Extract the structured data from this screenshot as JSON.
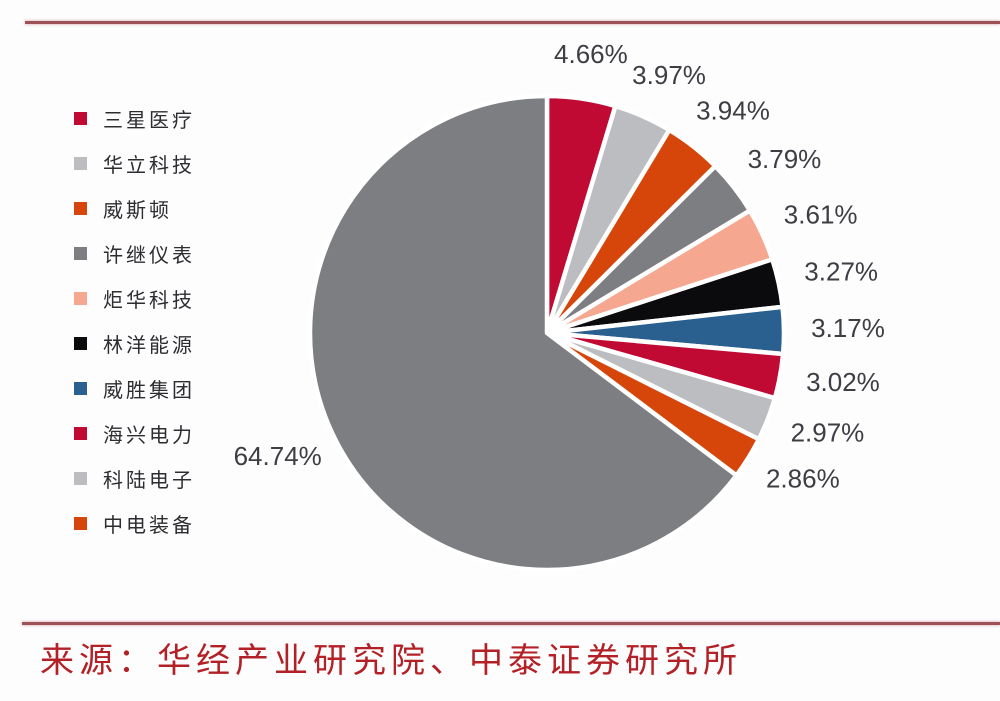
{
  "chart_data": {
    "type": "pie",
    "title": "",
    "legend_position": "left",
    "start_angle_deg": 0,
    "direction": "clockwise",
    "total": 100,
    "slices": [
      {
        "label": "三星医疗",
        "value": 4.66,
        "display": "4.66%",
        "color": "#c00a33",
        "in_legend": true
      },
      {
        "label": "华立科技",
        "value": 3.97,
        "display": "3.97%",
        "color": "#bcbdc0",
        "in_legend": true
      },
      {
        "label": "威斯顿",
        "value": 3.94,
        "display": "3.94%",
        "color": "#d6450a",
        "in_legend": true
      },
      {
        "label": "许继仪表",
        "value": 3.79,
        "display": "3.79%",
        "color": "#7d7e82",
        "in_legend": true
      },
      {
        "label": "炬华科技",
        "value": 3.61,
        "display": "3.61%",
        "color": "#f5a78f",
        "in_legend": true
      },
      {
        "label": "林洋能源",
        "value": 3.27,
        "display": "3.27%",
        "color": "#0b0b0d",
        "in_legend": true
      },
      {
        "label": "威胜集团",
        "value": 3.17,
        "display": "3.17%",
        "color": "#2a608f",
        "in_legend": true
      },
      {
        "label": "海兴电力",
        "value": 3.02,
        "display": "3.02%",
        "color": "#c00a33",
        "in_legend": true
      },
      {
        "label": "科陆电子",
        "value": 2.97,
        "display": "2.97%",
        "color": "#bcbdc0",
        "in_legend": true
      },
      {
        "label": "中电装备",
        "value": 2.86,
        "display": "2.86%",
        "color": "#d6450a",
        "in_legend": true
      },
      {
        "label": "",
        "value": 64.74,
        "display": "64.74%",
        "color": "#7d7e82",
        "in_legend": false
      }
    ]
  },
  "source": {
    "text": "来源：华经产业研究院、中泰证券研究所"
  },
  "colors": {
    "rule": "#9c5156",
    "source_text": "#b32025",
    "percent_text": "#3d3d43",
    "background": "#fdfdfe"
  }
}
